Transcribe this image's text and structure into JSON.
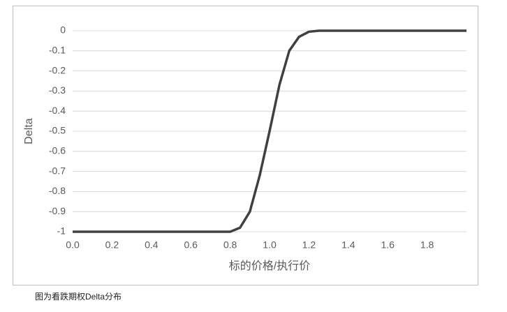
{
  "chart_data": {
    "type": "line",
    "x_label": "标的价格/执行价",
    "y_label": "Delta",
    "caption": "图为看跌期权Delta分布",
    "x": [
      0,
      0.8,
      0.85,
      0.9,
      0.95,
      1.0,
      1.05,
      1.1,
      1.15,
      1.2,
      1.25,
      2.0
    ],
    "series": [
      {
        "color": "#404040",
        "values": [
          -1,
          -1,
          -0.98,
          -0.9,
          -0.72,
          -0.5,
          -0.27,
          -0.1,
          -0.03,
          -0.005,
          0,
          0
        ]
      }
    ],
    "xlim": [
      0,
      2
    ],
    "xticks": [
      {
        "value": 0,
        "label": "0.0"
      },
      0.2,
      0.4,
      0.6,
      0.8,
      {
        "value": 1,
        "label": "1.0"
      },
      1.2,
      1.4,
      1.6,
      1.8
    ],
    "ylim": [
      -1,
      0
    ],
    "yticks": [
      0,
      -0.1,
      -0.2,
      -0.3,
      -0.4,
      -0.5,
      -0.6,
      -0.7,
      -0.8,
      -0.9,
      -1
    ],
    "grid": true
  }
}
